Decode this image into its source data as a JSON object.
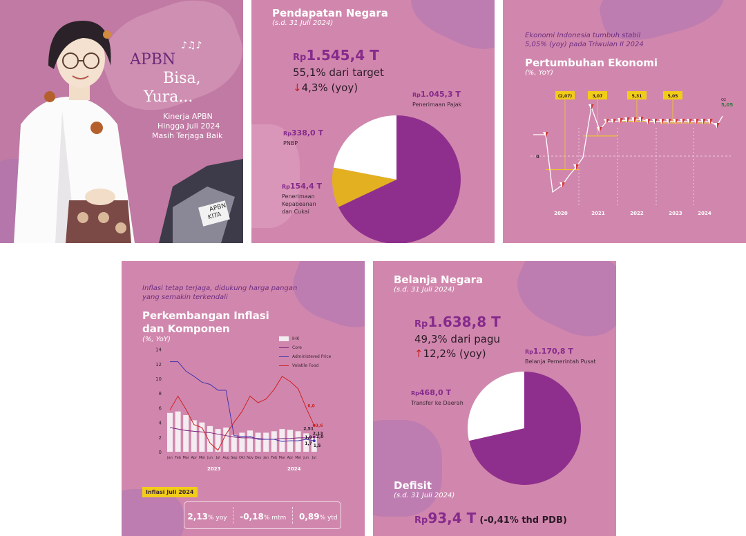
{
  "panel1": {
    "title_line1": "APBN",
    "title_line2": "Bisa,",
    "title_line3": "Yura...",
    "subtitle_line1": "Kinerja APBN",
    "subtitle_line2": "Hingga Juli 2024",
    "subtitle_line3": "Masih Terjaga Baik",
    "sign_line1": "APBN",
    "sign_line2": "KITA"
  },
  "panel2": {
    "title": "Pendapatan Negara",
    "period": "(s.d. 31 Juli 2024)",
    "total_prefix": "Rp",
    "total": "1.545,4 T",
    "target_text": "55,1% dari target",
    "yoy_text": "4,3% (yoy)",
    "slices": [
      {
        "prefix": "Rp",
        "value": "1.045,3 T",
        "label": "Penerimaan Pajak",
        "amount": 1045.3,
        "color": "#8f2f8d"
      },
      {
        "prefix": "Rp",
        "value": "154,4 T",
        "label": "Penerimaan Kepabeanan dan Cukai",
        "amount": 154.4,
        "color": "#e2b020"
      },
      {
        "prefix": "Rp",
        "value": "338,0 T",
        "label": "PNBP",
        "amount": 338.0,
        "color": "#ffffff"
      }
    ],
    "cukai_line1": "Penerimaan",
    "cukai_line2": "Kepabeanan",
    "cukai_line3": "dan Cukai"
  },
  "panel3": {
    "note_line1": "Ekonomi Indonesia tumbuh stabil",
    "note_line2": "5,05% (yoy) pada Triwulan II 2024",
    "title": "Pertumbuhan Ekonomi",
    "unit": "(%, YoY)",
    "zero_label": "0",
    "years": [
      "2020",
      "2021",
      "2022",
      "2023",
      "2024"
    ],
    "annual_badges": [
      "(2,07)",
      "3,07",
      "5,31",
      "5,05"
    ],
    "final_q_label": "Q2",
    "final_value": "5,05"
  },
  "panel4": {
    "note_line1": "Inflasi tetap terjaga, didukung harga pangan",
    "note_line2": "yang semakin terkendali",
    "title_line1": "Perkembangan Inflasi",
    "title_line2": "dan Komponen",
    "unit": "(%, YoY)",
    "legend": [
      {
        "name": "IHK",
        "color": "#f4ecf0"
      },
      {
        "name": "Core",
        "color": "#7a1f7a"
      },
      {
        "name": "Administered Price",
        "color": "#4433aa"
      },
      {
        "name": "Volatile Food",
        "color": "#cc2222"
      }
    ],
    "badge": "Inflasi Juli 2024",
    "stats": [
      {
        "value": "2,13",
        "unit": "% yoy"
      },
      {
        "value": "-0,18",
        "unit": "% mtm"
      },
      {
        "value": "0,89",
        "unit": "% ytd"
      }
    ],
    "end_labels": {
      "vf1": "6,0",
      "vf2": "3,6",
      "ihk1": "2,51",
      "ihk2": "2,13",
      "core1": "1,9",
      "core2": "2,0",
      "ap1": "1,7",
      "ap2": "1,5"
    }
  },
  "panel5": {
    "title": "Belanja Negara",
    "period": "(s.d. 31 Juli 2024)",
    "total_prefix": "Rp",
    "total": "1.638,8 T",
    "pagu_text": "49,3% dari pagu",
    "yoy_text": "12,2% (yoy)",
    "slices": [
      {
        "prefix": "Rp",
        "value": "1.170,8 T",
        "label": "Belanja Pemerintah Pusat",
        "amount": 1170.8,
        "color": "#8f2f8d"
      },
      {
        "prefix": "Rp",
        "value": "468,0 T",
        "label": "Transfer ke Daerah",
        "amount": 468.0,
        "color": "#ffffff"
      }
    ],
    "deficit_title": "Defisit",
    "deficit_period": "(s.d. 31 Juli 2024)",
    "deficit_prefix": "Rp",
    "deficit_value": "93,4 T",
    "deficit_pdb": "(-0,41% thd PDB)"
  },
  "chart_data": [
    {
      "type": "pie",
      "labels": [
        "Penerimaan Pajak",
        "Penerimaan Kepabeanan dan Cukai",
        "PNBP"
      ],
      "values": [
        1045.3,
        154.4,
        338.0
      ],
      "title": "Pendapatan Negara"
    },
    {
      "type": "line",
      "title": "Pertumbuhan Ekonomi",
      "ylabel": "(%, YoY)",
      "categories": [
        "2020",
        "2021",
        "2022",
        "2023",
        "2024"
      ],
      "series": [
        {
          "values": [
            -2.07,
            3.07,
            5.31,
            5.05,
            5.05
          ]
        }
      ]
    },
    {
      "type": "line",
      "title": "Perkembangan Inflasi dan Komponen",
      "ylabel": "(%, YoY)",
      "categories": [
        "Jan",
        "Feb",
        "Mar",
        "Apr",
        "Mei",
        "Jun",
        "Jul",
        "Aug",
        "Sep",
        "Okt",
        "Nov",
        "Des",
        "Jan",
        "Feb",
        "Mar",
        "Apr",
        "Mei",
        "Jun",
        "Jul"
      ],
      "x_groups": [
        "2023",
        "2024"
      ],
      "ylim": [
        0,
        14
      ],
      "yticks": [
        0,
        2,
        4,
        6,
        8,
        10,
        12,
        14
      ],
      "series": [
        {
          "name": "IHK",
          "values": [
            5.3,
            5.5,
            5.0,
            4.3,
            4.0,
            3.5,
            3.1,
            3.3,
            2.3,
            2.6,
            2.9,
            2.6,
            2.6,
            2.8,
            3.1,
            3.0,
            2.8,
            2.51,
            2.13
          ]
        },
        {
          "name": "Core",
          "values": [
            3.3,
            3.1,
            2.9,
            2.8,
            2.7,
            2.6,
            2.4,
            2.2,
            2.0,
            1.9,
            1.9,
            1.8,
            1.7,
            1.7,
            1.8,
            1.8,
            1.9,
            1.9,
            2.0
          ]
        },
        {
          "name": "Administered Price",
          "values": [
            12.3,
            12.3,
            11.0,
            10.3,
            9.5,
            9.2,
            8.4,
            8.4,
            2.2,
            2.1,
            2.1,
            1.7,
            1.7,
            1.7,
            1.4,
            1.5,
            1.5,
            1.7,
            1.5
          ]
        },
        {
          "name": "Volatile Food",
          "values": [
            5.7,
            7.6,
            5.8,
            3.7,
            3.3,
            1.2,
            0.2,
            2.4,
            4.0,
            5.5,
            7.6,
            6.7,
            7.2,
            8.5,
            10.3,
            9.6,
            8.6,
            6.0,
            3.6
          ]
        }
      ]
    },
    {
      "type": "pie",
      "labels": [
        "Belanja Pemerintah Pusat",
        "Transfer ke Daerah"
      ],
      "values": [
        1170.8,
        468.0
      ],
      "title": "Belanja Negara"
    }
  ]
}
